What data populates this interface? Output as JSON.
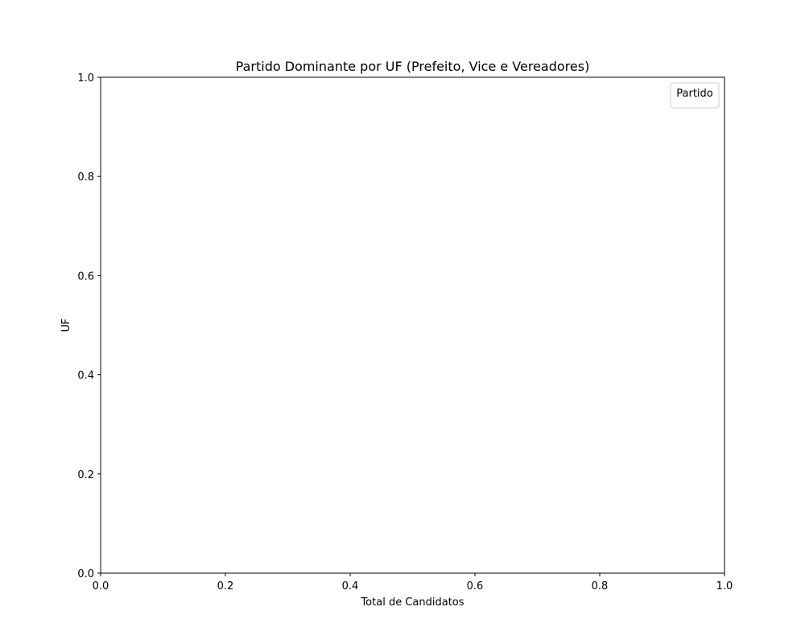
{
  "chart_data": {
    "type": "bar",
    "orientation": "horizontal",
    "title": "Partido Dominante por UF (Prefeito, Vice e Vereadores)",
    "xlabel": "Total de Candidatos",
    "ylabel": "UF",
    "xlim": [
      0,
      1
    ],
    "ylim": [
      0,
      1
    ],
    "x_ticks": [
      "0.0",
      "0.2",
      "0.4",
      "0.6",
      "0.8",
      "1.0"
    ],
    "y_ticks": [
      "0.0",
      "0.2",
      "0.4",
      "0.6",
      "0.8",
      "1.0"
    ],
    "categories": [],
    "series": [],
    "grid": false,
    "legend": {
      "title": "Partido",
      "placement": "top-right",
      "entries": []
    }
  }
}
